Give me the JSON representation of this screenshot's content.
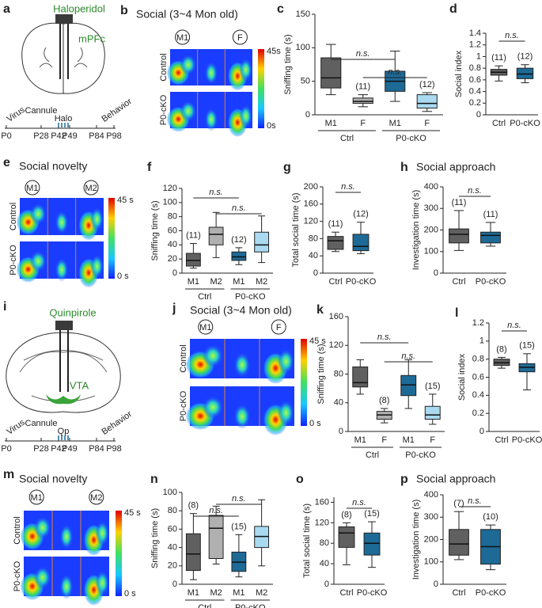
{
  "diagrams": [
    {
      "letter": "a",
      "drug": "Haloperidol",
      "region": "mPFc",
      "events": [
        "Virus",
        "Cannule",
        "Halo",
        "Behavior"
      ],
      "days": [
        "P0",
        "P28",
        "P42",
        "P49",
        "P84",
        "P98"
      ]
    },
    {
      "letter": "i",
      "drug": "Quinpirole",
      "region": "VTA",
      "events": [
        "Virus",
        "Cannule",
        "Qp",
        "Behavior"
      ],
      "days": [
        "P0",
        "P28",
        "P42",
        "P49",
        "P84",
        "P98"
      ]
    }
  ],
  "heatmaps": [
    {
      "letter": "b",
      "title": "Social (3~4 Mon old)",
      "chambers": [
        "M1",
        "F"
      ],
      "rows": [
        "Control",
        "P0-cKO"
      ],
      "scale": [
        "45s",
        "0s"
      ]
    },
    {
      "letter": "e",
      "title": "Social novelty",
      "chambers": [
        "M1",
        "M2"
      ],
      "rows": [
        "Control",
        "P0-cKO"
      ],
      "scale": [
        "45 s",
        "0 s"
      ]
    },
    {
      "letter": "j",
      "title": "Social (3~4 Mon old)",
      "chambers": [
        "M1",
        "F"
      ],
      "rows": [
        "Control",
        "P0-cKO"
      ],
      "scale": [
        "45 s",
        "0 s"
      ]
    },
    {
      "letter": "m",
      "title": "Social novelty",
      "chambers": [
        "M1",
        "M2"
      ],
      "rows": [
        "Control",
        "P0-cKO"
      ],
      "scale": [
        "45 s",
        "0 s"
      ]
    }
  ],
  "chart_data": [
    {
      "type": "box",
      "letter": "c",
      "y_label": "Sniffing time (s)",
      "categories": [
        "M1",
        "F",
        "M1",
        "F"
      ],
      "groups": [
        "Ctrl",
        "P0-cKO"
      ],
      "boxes": [
        {
          "min": 30,
          "q1": 40,
          "median": 55,
          "q3": 85,
          "max": 105,
          "color": "#606060"
        },
        {
          "min": 12,
          "q1": 17,
          "median": 20,
          "q3": 25,
          "max": 30,
          "color": "#b0b0b0",
          "n_label": "(11)"
        },
        {
          "min": 20,
          "q1": 35,
          "median": 50,
          "q3": 65,
          "max": 95,
          "color": "#1d6a96"
        },
        {
          "min": 5,
          "q1": 10,
          "median": 17,
          "q3": 30,
          "max": 33,
          "color": "#a9daf0",
          "n_label": "(12)"
        }
      ],
      "annotations": [
        "n.s.",
        "n.s."
      ],
      "ylim": [
        0,
        150
      ],
      "yticks": [
        0,
        50,
        100,
        150
      ]
    },
    {
      "type": "box",
      "letter": "d",
      "y_label": "Social index",
      "categories": [
        "Ctrl",
        "P0-cKO"
      ],
      "boxes": [
        {
          "min": 0.58,
          "q1": 0.68,
          "median": 0.73,
          "q3": 0.78,
          "max": 0.84,
          "color": "#606060",
          "n_label": "(11)"
        },
        {
          "min": 0.55,
          "q1": 0.62,
          "median": 0.7,
          "q3": 0.8,
          "max": 0.86,
          "color": "#1d6a96",
          "n_label": "(12)"
        }
      ],
      "annotations": [
        "n.s."
      ],
      "ylim": [
        0,
        1.4
      ],
      "yticks": [
        0,
        0.2,
        0.4,
        0.6,
        0.8,
        1,
        1.2,
        1.4
      ]
    },
    {
      "type": "box",
      "letter": "f",
      "y_label": "Sniffing time (s)",
      "categories": [
        "M1",
        "M2",
        "M1",
        "M2"
      ],
      "groups": [
        "Ctrl",
        "P0-cKO"
      ],
      "boxes": [
        {
          "min": 7,
          "q1": 10,
          "median": 18,
          "q3": 28,
          "max": 42,
          "color": "#606060",
          "n_label": "(11)"
        },
        {
          "min": 22,
          "q1": 40,
          "median": 55,
          "q3": 65,
          "max": 86,
          "color": "#b0b0b0"
        },
        {
          "min": 12,
          "q1": 18,
          "median": 23,
          "q3": 30,
          "max": 36,
          "color": "#1d6a96",
          "n_label": "(12)"
        },
        {
          "min": 15,
          "q1": 30,
          "median": 40,
          "q3": 58,
          "max": 81,
          "color": "#a9daf0"
        }
      ],
      "annotations": [
        "n.s.",
        "n.s."
      ],
      "ylim": [
        0,
        120
      ],
      "yticks": [
        0,
        20,
        40,
        60,
        80,
        100,
        120
      ]
    },
    {
      "type": "box",
      "letter": "g",
      "y_label": "Total social time (s)",
      "categories": [
        "Ctrl",
        "P0-cKO"
      ],
      "boxes": [
        {
          "min": 50,
          "q1": 55,
          "median": 75,
          "q3": 85,
          "max": 95,
          "color": "#606060",
          "n_label": "(11)"
        },
        {
          "min": 45,
          "q1": 52,
          "median": 62,
          "q3": 90,
          "max": 118,
          "color": "#1d6a96",
          "n_label": "(12)"
        }
      ],
      "annotations": [
        "n.s."
      ],
      "ylim": [
        0,
        200
      ],
      "yticks": [
        0,
        40,
        80,
        120,
        160,
        200
      ]
    },
    {
      "type": "box",
      "letter": "h",
      "title": "Social approach",
      "y_label": "Investigation time (s)",
      "categories": [
        "Ctrl",
        "P0-cKO"
      ],
      "boxes": [
        {
          "min": 105,
          "q1": 140,
          "median": 180,
          "q3": 205,
          "max": 290,
          "color": "#606060",
          "n_label": "(11)"
        },
        {
          "min": 125,
          "q1": 140,
          "median": 175,
          "q3": 190,
          "max": 235,
          "color": "#1d6a96",
          "n_label": "(11)"
        }
      ],
      "annotations": [
        "n.s."
      ],
      "ylim": [
        0,
        400
      ],
      "yticks": [
        0,
        100,
        200,
        300,
        400
      ]
    },
    {
      "type": "box",
      "letter": "k",
      "y_label": "Sniffing time (s)",
      "categories": [
        "M1",
        "F",
        "M1",
        "F"
      ],
      "groups": [
        "Ctrl",
        "P0-cKO"
      ],
      "boxes": [
        {
          "min": 52,
          "q1": 62,
          "median": 68,
          "q3": 90,
          "max": 100,
          "color": "#606060"
        },
        {
          "min": 12,
          "q1": 17,
          "median": 23,
          "q3": 28,
          "max": 32,
          "color": "#b0b0b0",
          "n_label": "(8)"
        },
        {
          "min": 32,
          "q1": 50,
          "median": 65,
          "q3": 78,
          "max": 100,
          "color": "#1d6a96"
        },
        {
          "min": 10,
          "q1": 17,
          "median": 23,
          "q3": 35,
          "max": 52,
          "color": "#a9daf0",
          "n_label": "(15)"
        }
      ],
      "annotations": [
        "n.s.",
        "n.s."
      ],
      "ylim": [
        0,
        160
      ],
      "yticks": [
        0,
        40,
        80,
        120,
        160
      ]
    },
    {
      "type": "box",
      "letter": "l",
      "y_label": "Social index",
      "categories": [
        "Ctrl",
        "P0-cKO"
      ],
      "boxes": [
        {
          "min": 0.7,
          "q1": 0.73,
          "median": 0.76,
          "q3": 0.8,
          "max": 0.82,
          "color": "#606060",
          "n_label": "(8)"
        },
        {
          "min": 0.46,
          "q1": 0.66,
          "median": 0.71,
          "q3": 0.75,
          "max": 0.86,
          "color": "#1d6a96",
          "n_label": "(15)"
        }
      ],
      "annotations": [
        "n.s."
      ],
      "ylim": [
        0,
        1.2
      ],
      "yticks": [
        0,
        0.2,
        0.4,
        0.6,
        0.8,
        1,
        1.2
      ]
    },
    {
      "type": "box",
      "letter": "n",
      "y_label": "Sniffing time (s)",
      "categories": [
        "M1",
        "M2",
        "M1",
        "M2"
      ],
      "groups": [
        "Ctrl",
        "P0-cKO"
      ],
      "boxes": [
        {
          "min": 5,
          "q1": 15,
          "median": 33,
          "q3": 55,
          "max": 77,
          "color": "#606060",
          "n_label": "(8)"
        },
        {
          "min": 22,
          "q1": 28,
          "median": 61,
          "q3": 75,
          "max": 85,
          "color": "#b0b0b0"
        },
        {
          "min": 8,
          "q1": 14,
          "median": 24,
          "q3": 35,
          "max": 54,
          "color": "#1d6a96",
          "n_label": "(15)"
        },
        {
          "min": 20,
          "q1": 40,
          "median": 52,
          "q3": 63,
          "max": 92,
          "color": "#a9daf0"
        }
      ],
      "annotations": [
        "n.s.",
        "n.s."
      ],
      "ylim": [
        0,
        100
      ],
      "yticks": [
        0,
        20,
        40,
        60,
        80,
        100
      ]
    },
    {
      "type": "box",
      "letter": "o",
      "y_label": "Total social time (s)",
      "categories": [
        "Ctrl",
        "P0-cKO"
      ],
      "boxes": [
        {
          "min": 38,
          "q1": 72,
          "median": 100,
          "q3": 112,
          "max": 120,
          "color": "#606060",
          "n_label": "(8)"
        },
        {
          "min": 33,
          "q1": 57,
          "median": 80,
          "q3": 100,
          "max": 122,
          "color": "#1d6a96",
          "n_label": "(15)"
        }
      ],
      "annotations": [
        "n.s."
      ],
      "ylim": [
        0,
        170
      ],
      "yticks": [
        0,
        40,
        80,
        120,
        160
      ]
    },
    {
      "type": "box",
      "letter": "p",
      "title": "Social approach",
      "y_label": "Investigation time (s)",
      "categories": [
        "Ctrl",
        "P0-cKO"
      ],
      "boxes": [
        {
          "min": 110,
          "q1": 130,
          "median": 180,
          "q3": 245,
          "max": 325,
          "color": "#606060",
          "n_label": "(7)"
        },
        {
          "min": 65,
          "q1": 90,
          "median": 168,
          "q3": 245,
          "max": 265,
          "color": "#1d6a96",
          "n_label": "(10)"
        }
      ],
      "annotations": [
        "n.s."
      ],
      "ylim": [
        0,
        400
      ],
      "yticks": [
        0,
        100,
        200,
        300,
        400
      ]
    }
  ]
}
